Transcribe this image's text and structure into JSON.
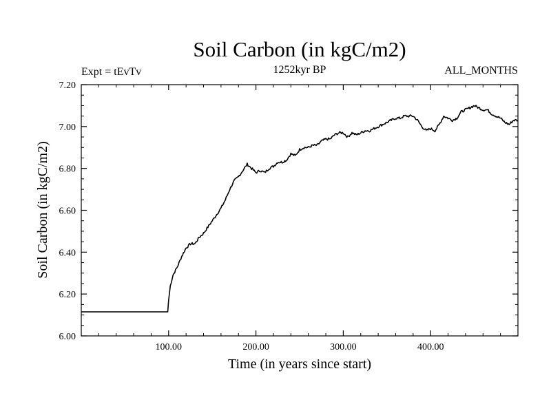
{
  "chart_data": {
    "type": "line",
    "title": "Soil Carbon (in kgC/m2)",
    "subtitle_left": "Expt = tEvTv",
    "subtitle_center": "1252kyr BP",
    "subtitle_right": "ALL_MONTHS",
    "xlabel": "Time (in years since start)",
    "ylabel": "Soil Carbon (in kgC/m2)",
    "xlim": [
      0,
      500
    ],
    "ylim": [
      6.0,
      7.2
    ],
    "x_ticks": [
      100,
      200,
      300,
      400
    ],
    "x_tick_labels": [
      "100.00",
      "200.00",
      "300.00",
      "400.00"
    ],
    "y_ticks": [
      6.0,
      6.2,
      6.4,
      6.6,
      6.8,
      7.0,
      7.2
    ],
    "y_tick_labels": [
      "6.00",
      "6.20",
      "6.40",
      "6.60",
      "6.80",
      "7.00",
      "7.20"
    ],
    "grid": false,
    "series": [
      {
        "name": "Soil Carbon",
        "x": [
          0,
          99,
          100,
          102,
          105,
          110,
          115,
          120,
          125,
          130,
          135,
          140,
          145,
          150,
          155,
          160,
          165,
          170,
          175,
          180,
          185,
          190,
          195,
          200,
          205,
          210,
          215,
          220,
          225,
          230,
          235,
          240,
          245,
          250,
          255,
          260,
          265,
          270,
          275,
          280,
          285,
          290,
          295,
          300,
          305,
          310,
          315,
          320,
          325,
          330,
          335,
          340,
          345,
          350,
          355,
          360,
          365,
          370,
          375,
          380,
          385,
          390,
          395,
          400,
          405,
          410,
          415,
          420,
          425,
          430,
          435,
          440,
          445,
          450,
          455,
          460,
          465,
          470,
          475,
          480,
          485,
          490,
          495,
          500
        ],
        "values": [
          6.115,
          6.115,
          6.17,
          6.24,
          6.29,
          6.33,
          6.38,
          6.42,
          6.44,
          6.44,
          6.47,
          6.49,
          6.52,
          6.55,
          6.58,
          6.61,
          6.65,
          6.7,
          6.74,
          6.76,
          6.79,
          6.82,
          6.8,
          6.78,
          6.79,
          6.78,
          6.8,
          6.81,
          6.83,
          6.83,
          6.84,
          6.87,
          6.86,
          6.89,
          6.9,
          6.9,
          6.91,
          6.91,
          6.93,
          6.94,
          6.94,
          6.96,
          6.97,
          6.97,
          6.95,
          6.97,
          6.96,
          6.97,
          6.98,
          6.98,
          6.99,
          7.0,
          7.01,
          7.02,
          7.03,
          7.04,
          7.04,
          7.05,
          7.05,
          7.05,
          7.03,
          7.0,
          6.98,
          6.99,
          6.98,
          7.01,
          7.05,
          7.04,
          7.03,
          7.04,
          7.07,
          7.08,
          7.09,
          7.1,
          7.09,
          7.08,
          7.08,
          7.06,
          7.05,
          7.04,
          7.02,
          7.01,
          7.03,
          7.03
        ]
      }
    ]
  }
}
